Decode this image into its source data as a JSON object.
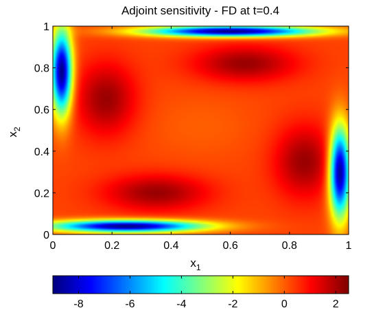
{
  "chart_data": {
    "type": "heatmap",
    "title": "Adjoint sensitivity - FD at t=0.4",
    "xlabel": {
      "base": "x",
      "sub": "1"
    },
    "ylabel": {
      "base": "x",
      "sub": "2"
    },
    "xlim": [
      0,
      1
    ],
    "ylim": [
      0,
      1
    ],
    "x_ticks": [
      0,
      0.2,
      0.4,
      0.6,
      0.8,
      1
    ],
    "x_tick_labels": [
      "0",
      "0.2",
      "0.4",
      "0.6",
      "0.8",
      "1"
    ],
    "y_ticks": [
      0,
      0.2,
      0.4,
      0.6,
      0.8,
      1
    ],
    "y_tick_labels": [
      "0",
      "0.2",
      "0.4",
      "0.6",
      "0.8",
      "1"
    ],
    "colormap": "jet",
    "color_range": [
      -9,
      2.5
    ],
    "colorbar": {
      "orientation": "horizontal",
      "ticks": [
        -8,
        -6,
        -4,
        -2,
        0,
        2
      ],
      "tick_labels": [
        "-8",
        "-6",
        "-4",
        "-2",
        "0",
        "2"
      ]
    },
    "background_value": 0.3,
    "features": [
      {
        "kind": "min",
        "x": 0.6,
        "y": 0.975,
        "sx": 0.2,
        "sy": 0.018,
        "value": -9.0
      },
      {
        "kind": "min",
        "x": 0.25,
        "y": 0.04,
        "sx": 0.18,
        "sy": 0.02,
        "value": -9.0
      },
      {
        "kind": "min",
        "x": 0.03,
        "y": 0.78,
        "sx": 0.024,
        "sy": 0.14,
        "value": -9.0
      },
      {
        "kind": "min",
        "x": 0.97,
        "y": 0.3,
        "sx": 0.024,
        "sy": 0.15,
        "value": -9.0
      },
      {
        "kind": "max",
        "x": 0.18,
        "y": 0.65,
        "sx": 0.07,
        "sy": 0.12,
        "value": 2.2
      },
      {
        "kind": "max",
        "x": 0.85,
        "y": 0.35,
        "sx": 0.07,
        "sy": 0.12,
        "value": 2.2
      },
      {
        "kind": "max",
        "x": 0.35,
        "y": 0.2,
        "sx": 0.12,
        "sy": 0.06,
        "value": 2.2
      },
      {
        "kind": "max",
        "x": 0.65,
        "y": 0.82,
        "sx": 0.12,
        "sy": 0.06,
        "value": 2.2
      },
      {
        "kind": "max",
        "x": 0.5,
        "y": 0.52,
        "sx": 0.13,
        "sy": 0.11,
        "value": 0.0
      }
    ]
  }
}
